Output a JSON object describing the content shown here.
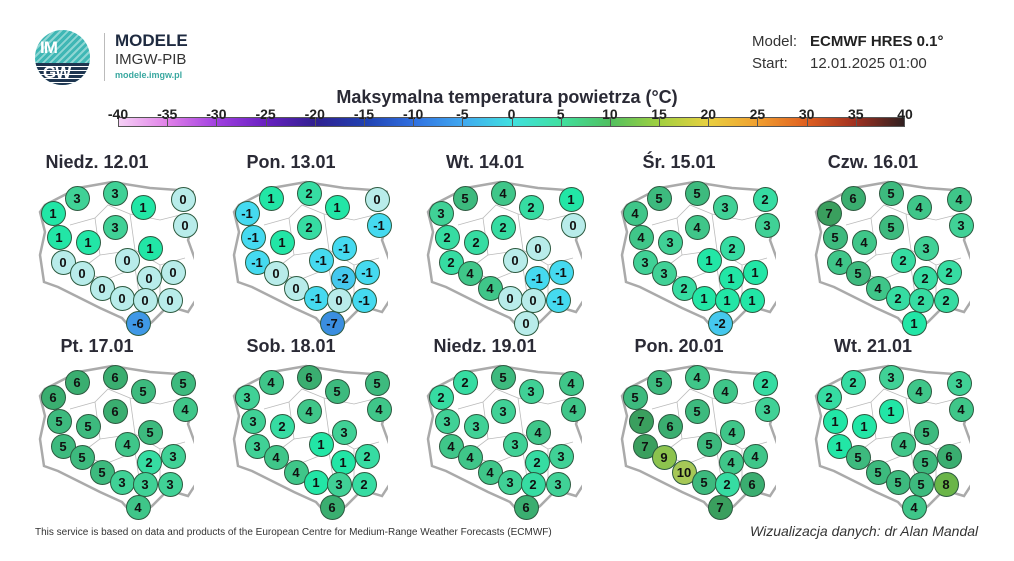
{
  "header": {
    "logo_text": "IMGW",
    "brand": "MODELE",
    "org": "IMGW-PIB",
    "site": "modele.imgw.pl",
    "model_label": "Model:",
    "model_value": "ECMWF HRES 0.1°",
    "start_label": "Start:",
    "start_value": "12.01.2025 01:00"
  },
  "chart_data": {
    "type": "map",
    "title": "Maksymalna temperatura powietrza (°C)",
    "colorbar": {
      "ticks": [
        -40,
        -35,
        -30,
        -25,
        -20,
        -15,
        -10,
        -5,
        0,
        5,
        10,
        15,
        20,
        25,
        30,
        35,
        40
      ],
      "range": [
        -40,
        40
      ]
    },
    "days": [
      {
        "label": "Niedz. 12.01",
        "values": [
          1,
          3,
          3,
          1,
          0,
          0,
          3,
          1,
          1,
          1,
          0,
          0,
          0,
          0,
          0,
          0,
          0,
          0,
          0,
          -6
        ]
      },
      {
        "label": "Pon. 13.01",
        "values": [
          -1,
          1,
          2,
          1,
          0,
          -1,
          2,
          -1,
          1,
          -1,
          -1,
          -1,
          0,
          -2,
          -1,
          0,
          -1,
          0,
          -1,
          -7
        ]
      },
      {
        "label": "Wt. 14.01",
        "values": [
          3,
          5,
          4,
          2,
          1,
          0,
          2,
          2,
          2,
          0,
          2,
          0,
          4,
          -1,
          -1,
          4,
          0,
          0,
          -1,
          0
        ]
      },
      {
        "label": "Śr. 15.01",
        "values": [
          4,
          5,
          5,
          3,
          2,
          3,
          4,
          4,
          3,
          2,
          3,
          1,
          3,
          1,
          1,
          2,
          1,
          1,
          1,
          -2
        ]
      },
      {
        "label": "Czw. 16.01",
        "values": [
          7,
          6,
          5,
          4,
          4,
          3,
          5,
          5,
          4,
          3,
          4,
          2,
          5,
          2,
          2,
          4,
          2,
          2,
          2,
          1
        ]
      },
      {
        "label": "Pt. 17.01",
        "values": [
          6,
          6,
          6,
          5,
          5,
          4,
          6,
          5,
          5,
          5,
          5,
          4,
          5,
          2,
          3,
          5,
          3,
          3,
          3,
          4
        ]
      },
      {
        "label": "Sob. 18.01",
        "values": [
          3,
          4,
          6,
          5,
          5,
          4,
          4,
          3,
          2,
          3,
          3,
          1,
          4,
          1,
          2,
          4,
          1,
          3,
          2,
          6
        ]
      },
      {
        "label": "Niedz. 19.01",
        "values": [
          2,
          2,
          5,
          3,
          4,
          4,
          3,
          3,
          3,
          4,
          4,
          3,
          4,
          2,
          3,
          4,
          3,
          2,
          3,
          6
        ]
      },
      {
        "label": "Pon. 20.01",
        "values": [
          5,
          5,
          4,
          4,
          2,
          3,
          5,
          7,
          6,
          4,
          7,
          5,
          9,
          4,
          4,
          10,
          5,
          2,
          6,
          7
        ]
      },
      {
        "label": "Wt. 21.01",
        "values": [
          2,
          2,
          3,
          4,
          3,
          4,
          1,
          1,
          1,
          5,
          1,
          4,
          5,
          5,
          6,
          5,
          5,
          5,
          8,
          4
        ]
      }
    ]
  },
  "footer": {
    "source": "This service is based on data and products of the European Centre for Medium-Range Weather Forecasts (ECMWF)",
    "credit": "Wizualizacja danych: dr Alan Mandal"
  }
}
